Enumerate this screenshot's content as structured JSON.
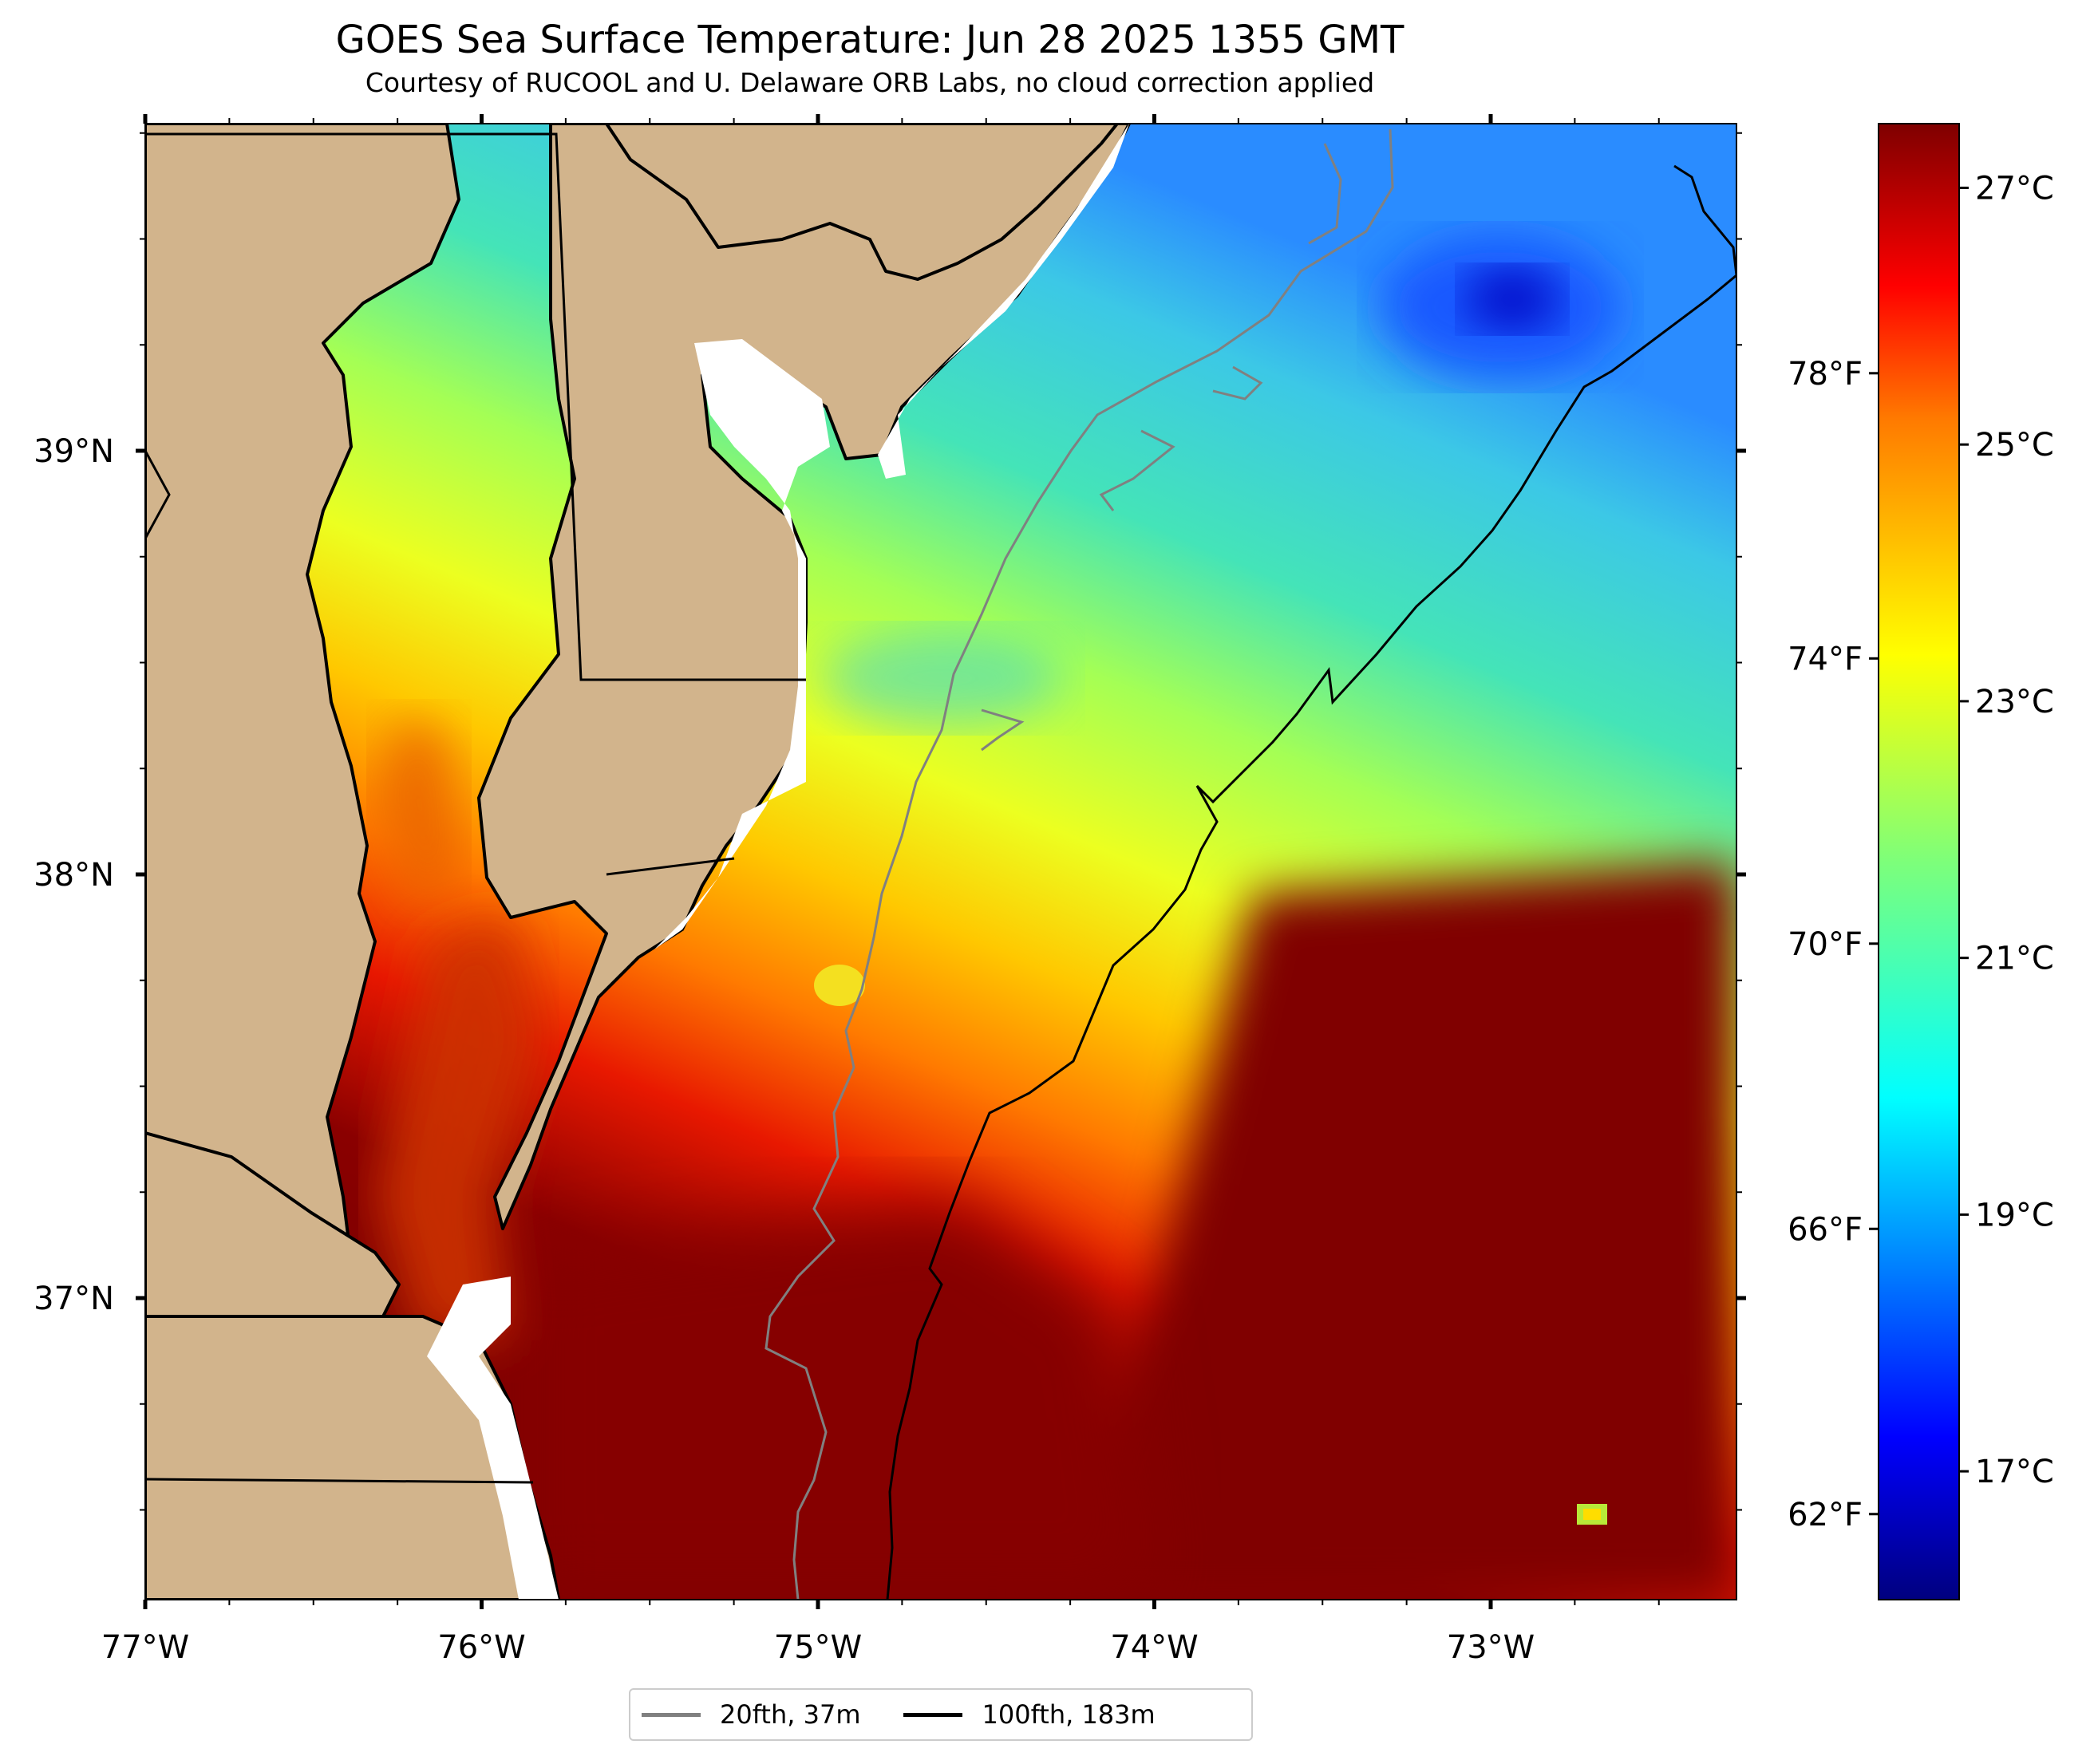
{
  "title": "GOES Sea Surface Temperature: Jun 28 2025 1355 GMT",
  "subtitle": "Courtesy of RUCOOL and U. Delaware ORB Labs, no cloud correction applied",
  "map": {
    "x_ticks": [
      "77°W",
      "76°W",
      "75°W",
      "74°W",
      "73°W"
    ],
    "y_ticks": [
      "39°N",
      "38°N",
      "37°N"
    ],
    "colors": {
      "land": "#d2b48c",
      "coastline": "#000000",
      "nodata": "#ffffff",
      "contour_20fth": "#808080",
      "contour_100fth": "#000000"
    }
  },
  "colorbar": {
    "celsius_ticks": [
      "27°C",
      "25°C",
      "23°C",
      "21°C",
      "19°C",
      "17°C"
    ],
    "fahrenheit_ticks": [
      "78°F",
      "74°F",
      "70°F",
      "66°F",
      "62°F"
    ],
    "colormap": "jet",
    "range_c": [
      16.0,
      27.5
    ]
  },
  "legend": {
    "items": [
      {
        "label": "20fth, 37m",
        "color": "#808080"
      },
      {
        "label": "100fth, 183m",
        "color": "#000000"
      }
    ]
  }
}
